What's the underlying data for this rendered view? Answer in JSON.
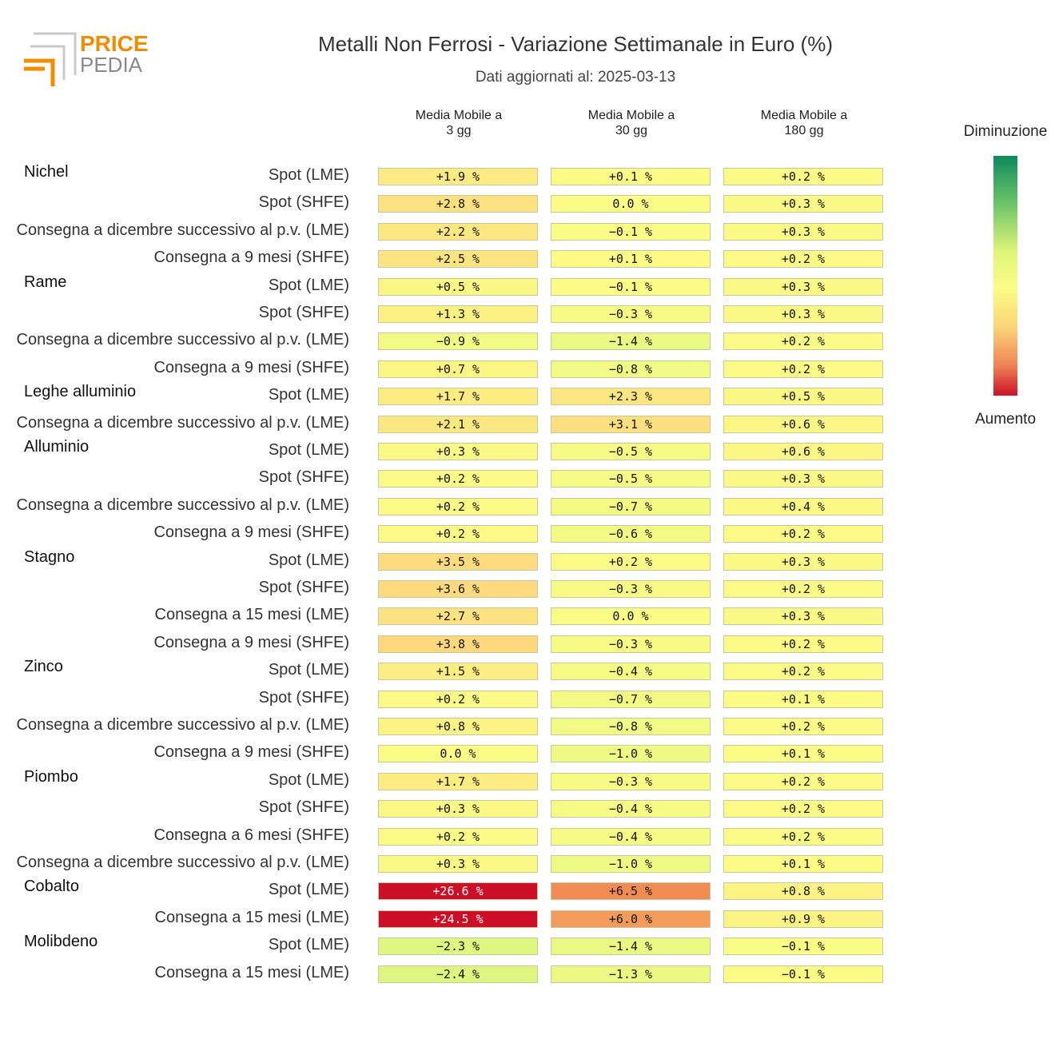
{
  "header": {
    "logo_text_top": "PRICE",
    "logo_text_bottom": "PEDIA",
    "title": "Metalli Non Ferrosi - Variazione Settimanale in Euro (%)",
    "subtitle": "Dati aggiornati al: 2025-03-13"
  },
  "legend": {
    "top_label": "Diminuzione",
    "bottom_label": "Aumento"
  },
  "chart_data": {
    "type": "heatmap",
    "title": "Metalli Non Ferrosi - Variazione Settimanale in Euro (%)",
    "columns": [
      "Media Mobile a\n3 gg",
      "Media Mobile a\n30 gg",
      "Media Mobile a\n180 gg"
    ],
    "unit": "%",
    "groups": [
      {
        "name": "Nichel",
        "rows": [
          {
            "label": "Spot (LME)",
            "values": [
              "+1.9 %",
              "+0.1 %",
              "+0.2 %"
            ]
          },
          {
            "label": "Spot (SHFE)",
            "values": [
              "+2.8 %",
              "0.0 %",
              "+0.3 %"
            ]
          },
          {
            "label": "Consegna a dicembre successivo al p.v. (LME)",
            "values": [
              "+2.2 %",
              "-0.1 %",
              "+0.3 %"
            ]
          },
          {
            "label": "Consegna a 9 mesi (SHFE)",
            "values": [
              "+2.5 %",
              "+0.1 %",
              "+0.2 %"
            ]
          }
        ]
      },
      {
        "name": "Rame",
        "rows": [
          {
            "label": "Spot (LME)",
            "values": [
              "+0.5 %",
              "-0.1 %",
              "+0.3 %"
            ]
          },
          {
            "label": "Spot (SHFE)",
            "values": [
              "+1.3 %",
              "-0.3 %",
              "+0.3 %"
            ]
          },
          {
            "label": "Consegna a dicembre successivo al p.v. (LME)",
            "values": [
              "-0.9 %",
              "-1.4 %",
              "+0.2 %"
            ]
          },
          {
            "label": "Consegna a 9 mesi (SHFE)",
            "values": [
              "+0.7 %",
              "-0.8 %",
              "+0.2 %"
            ]
          }
        ]
      },
      {
        "name": "Leghe alluminio",
        "rows": [
          {
            "label": "Spot (LME)",
            "values": [
              "+1.7 %",
              "+2.3 %",
              "+0.5 %"
            ]
          },
          {
            "label": "Consegna a dicembre successivo al p.v. (LME)",
            "values": [
              "+2.1 %",
              "+3.1 %",
              "+0.6 %"
            ]
          }
        ]
      },
      {
        "name": "Alluminio",
        "rows": [
          {
            "label": "Spot (LME)",
            "values": [
              "+0.3 %",
              "-0.5 %",
              "+0.6 %"
            ]
          },
          {
            "label": "Spot (SHFE)",
            "values": [
              "+0.2 %",
              "-0.5 %",
              "+0.3 %"
            ]
          },
          {
            "label": "Consegna a dicembre successivo al p.v. (LME)",
            "values": [
              "+0.2 %",
              "-0.7 %",
              "+0.4 %"
            ]
          },
          {
            "label": "Consegna a 9 mesi (SHFE)",
            "values": [
              "+0.2 %",
              "-0.6 %",
              "+0.2 %"
            ]
          }
        ]
      },
      {
        "name": "Stagno",
        "rows": [
          {
            "label": "Spot (LME)",
            "values": [
              "+3.5 %",
              "+0.2 %",
              "+0.3 %"
            ]
          },
          {
            "label": "Spot (SHFE)",
            "values": [
              "+3.6 %",
              "-0.3 %",
              "+0.2 %"
            ]
          },
          {
            "label": "Consegna a 15 mesi (LME)",
            "values": [
              "+2.7 %",
              "0.0 %",
              "+0.3 %"
            ]
          },
          {
            "label": "Consegna a 9 mesi (SHFE)",
            "values": [
              "+3.8 %",
              "-0.3 %",
              "+0.2 %"
            ]
          }
        ]
      },
      {
        "name": "Zinco",
        "rows": [
          {
            "label": "Spot (LME)",
            "values": [
              "+1.5 %",
              "-0.4 %",
              "+0.2 %"
            ]
          },
          {
            "label": "Spot (SHFE)",
            "values": [
              "+0.2 %",
              "-0.7 %",
              "+0.1 %"
            ]
          },
          {
            "label": "Consegna a dicembre successivo al p.v. (LME)",
            "values": [
              "+0.8 %",
              "-0.8 %",
              "+0.2 %"
            ]
          },
          {
            "label": "Consegna a 9 mesi (SHFE)",
            "values": [
              "0.0 %",
              "-1.0 %",
              "+0.1 %"
            ]
          }
        ]
      },
      {
        "name": "Piombo",
        "rows": [
          {
            "label": "Spot (LME)",
            "values": [
              "+1.7 %",
              "-0.3 %",
              "+0.2 %"
            ]
          },
          {
            "label": "Spot (SHFE)",
            "values": [
              "+0.3 %",
              "-0.4 %",
              "+0.2 %"
            ]
          },
          {
            "label": "Consegna a 6 mesi (SHFE)",
            "values": [
              "+0.2 %",
              "-0.4 %",
              "+0.2 %"
            ]
          },
          {
            "label": "Consegna a dicembre successivo al p.v. (LME)",
            "values": [
              "+0.3 %",
              "-1.0 %",
              "+0.1 %"
            ]
          }
        ]
      },
      {
        "name": "Cobalto",
        "rows": [
          {
            "label": "Spot (LME)",
            "values": [
              "+26.6 %",
              "+6.5 %",
              "+0.8 %"
            ]
          },
          {
            "label": "Consegna a 15 mesi (LME)",
            "values": [
              "+24.5 %",
              "+6.0 %",
              "+0.9 %"
            ]
          }
        ]
      },
      {
        "name": "Molibdeno",
        "rows": [
          {
            "label": "Spot (LME)",
            "values": [
              "-2.3 %",
              "-1.4 %",
              "-0.1 %"
            ]
          },
          {
            "label": "Consegna a 15 mesi (LME)",
            "values": [
              "-2.4 %",
              "-1.3 %",
              "-0.1 %"
            ]
          }
        ]
      }
    ]
  }
}
